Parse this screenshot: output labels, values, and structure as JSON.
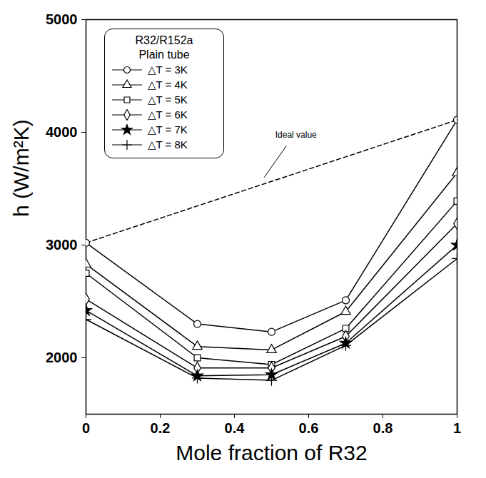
{
  "chart_data": {
    "type": "line",
    "x_label": "Mole fraction of R32",
    "y_label": "h (W/m²K)",
    "legend": "top-left",
    "legend_title": [
      "R32/R152a",
      "Plain tube"
    ],
    "grid": false,
    "x": [
      0,
      0.3,
      0.5,
      0.7,
      1
    ],
    "xlim": [
      0,
      1
    ],
    "xticks": [
      0,
      0.2,
      0.4,
      0.6,
      0.8,
      1
    ],
    "ylim": [
      1500,
      5000
    ],
    "yticks": [
      2000,
      3000,
      4000,
      5000
    ],
    "series": [
      {
        "name": "△T = 3K",
        "color": "black",
        "marker": "circle",
        "line_style": "solid",
        "values": [
          3020,
          2300,
          2230,
          2510,
          4110
        ]
      },
      {
        "name": "△T = 4K",
        "color": "black",
        "marker": "triangle",
        "line_style": "solid",
        "values": [
          2830,
          2100,
          2070,
          2410,
          3640
        ]
      },
      {
        "name": "△T = 5K",
        "color": "black",
        "marker": "square",
        "line_style": "solid",
        "values": [
          2750,
          2000,
          1940,
          2260,
          3390
        ]
      },
      {
        "name": "△T = 6K",
        "color": "black",
        "marker": "diamond",
        "line_style": "solid",
        "values": [
          2520,
          1910,
          1910,
          2190,
          3190
        ]
      },
      {
        "name": "△T = 7K",
        "color": "black",
        "marker": "star",
        "line_style": "solid",
        "values": [
          2420,
          1840,
          1850,
          2130,
          3000
        ]
      },
      {
        "name": "△T = 8K",
        "color": "black",
        "marker": "plus",
        "line_style": "solid",
        "values": [
          2340,
          1820,
          1800,
          2110,
          2880
        ]
      }
    ],
    "reference_line": {
      "text": "Ideal value",
      "color": "black",
      "line_style": "dashed",
      "x": [
        0,
        1
      ],
      "values": [
        3020,
        4110
      ],
      "label_x": 0.51,
      "label_y": 3975,
      "arrow_from": [
        0.54,
        3880
      ],
      "arrow_to": [
        0.48,
        3600
      ]
    }
  }
}
